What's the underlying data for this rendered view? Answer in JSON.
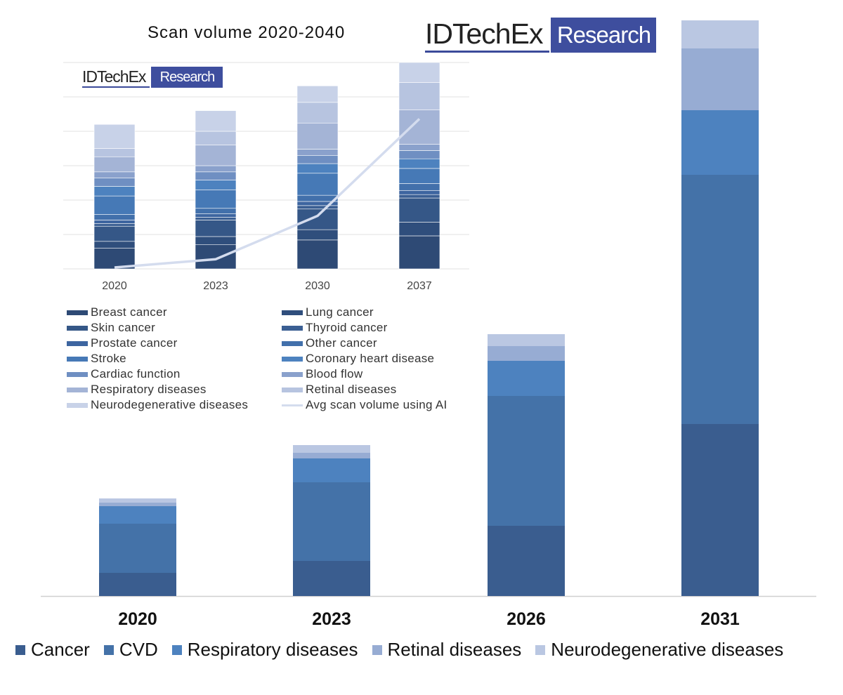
{
  "chart_data": [
    {
      "type": "bar",
      "stacked": true,
      "title": "",
      "xlabel": "",
      "ylabel": "",
      "categories": [
        "2020",
        "2023",
        "2026",
        "2031"
      ],
      "ylim": [
        0,
        820
      ],
      "grid": false,
      "legend_position": "bottom",
      "series": [
        {
          "name": "Cancer",
          "color": "#3a5d8f",
          "values": [
            33,
            50,
            100,
            245
          ]
        },
        {
          "name": "CVD",
          "color": "#4472a8",
          "values": [
            70,
            112,
            185,
            355
          ]
        },
        {
          "name": "Respiratory diseases",
          "color": "#4d82bf",
          "values": [
            25,
            34,
            50,
            92
          ]
        },
        {
          "name": "Retinal diseases",
          "color": "#97acd3",
          "values": [
            5,
            8,
            21,
            88
          ]
        },
        {
          "name": "Neurodegenerative diseases",
          "color": "#bac7e2",
          "values": [
            6,
            11,
            17,
            40
          ]
        }
      ]
    },
    {
      "type": "bar",
      "stacked": true,
      "title": "Scan volume 2020-2040",
      "xlabel": "",
      "ylabel": "",
      "categories": [
        "2020",
        "2023",
        "2030",
        "2037"
      ],
      "ylim": [
        0,
        300
      ],
      "grid": true,
      "legend_position": "bottom",
      "series": [
        {
          "name": "Breast cancer",
          "color": "#2e4a75",
          "values": [
            30,
            35,
            42,
            48
          ]
        },
        {
          "name": "Lung cancer",
          "color": "#2f4e7c",
          "values": [
            10,
            12,
            15,
            20
          ]
        },
        {
          "name": "Skin cancer",
          "color": "#355787",
          "values": [
            22,
            24,
            30,
            35
          ]
        },
        {
          "name": "Thyroid cancer",
          "color": "#3b5f93",
          "values": [
            4,
            4,
            5,
            5
          ]
        },
        {
          "name": "Prostate cancer",
          "color": "#3d65a0",
          "values": [
            5,
            5,
            6,
            6
          ]
        },
        {
          "name": "Other cancer",
          "color": "#4270ab",
          "values": [
            8,
            8,
            9,
            10
          ]
        },
        {
          "name": "Stroke",
          "color": "#4679b6",
          "values": [
            27,
            27,
            32,
            22
          ]
        },
        {
          "name": "Coronary heart disease",
          "color": "#4d82bf",
          "values": [
            14,
            14,
            14,
            14
          ]
        },
        {
          "name": "Cardiac function",
          "color": "#6f8fc2",
          "values": [
            12,
            12,
            12,
            12
          ]
        },
        {
          "name": "Blood flow",
          "color": "#8aa1cc",
          "values": [
            9,
            9,
            9,
            9
          ]
        },
        {
          "name": "Respiratory diseases",
          "color": "#a4b4d6",
          "values": [
            22,
            30,
            38,
            50
          ]
        },
        {
          "name": "Retinal diseases",
          "color": "#b7c4e0",
          "values": [
            12,
            20,
            30,
            40
          ]
        },
        {
          "name": "Neurodegenerative diseases",
          "color": "#c8d2e8",
          "values": [
            35,
            30,
            24,
            29
          ]
        }
      ],
      "line_series": {
        "name": "Avg scan volume using AI",
        "color": "#d4dcee",
        "values": [
          2,
          14,
          77,
          218
        ]
      }
    }
  ],
  "logos": {
    "main": {
      "word": "IDTechEx",
      "box": "Research"
    },
    "inset": {
      "word": "IDTechEx",
      "box": "Research"
    }
  }
}
